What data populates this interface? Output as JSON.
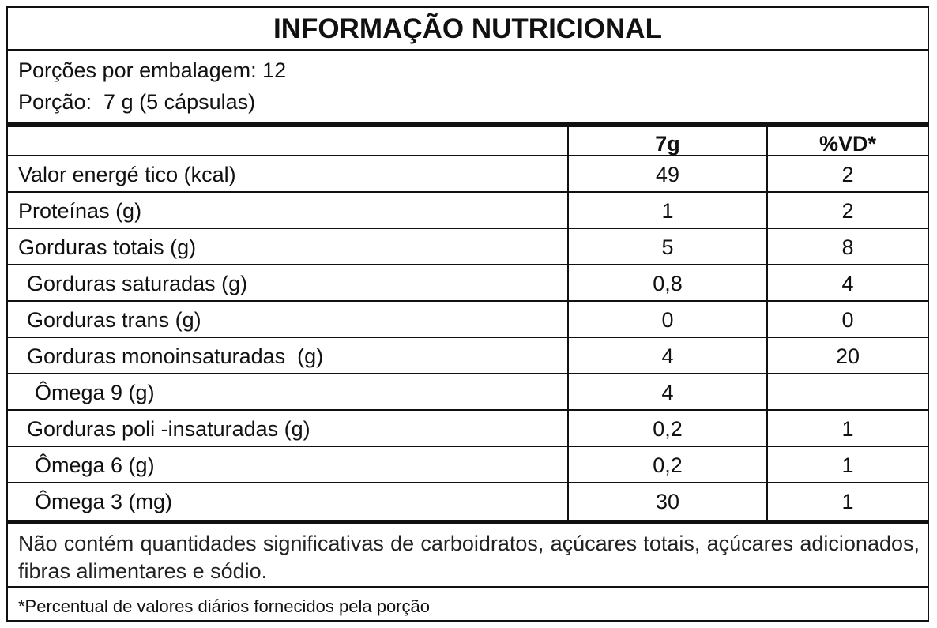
{
  "header": {
    "title": "INFORMAÇÃO NUTRICIONAL",
    "servings": "Porções por embalagem: 12",
    "serving_size": "Porção:  7 g (5 cápsulas)"
  },
  "table": {
    "columns": [
      "7g",
      "%VD*"
    ],
    "rows": [
      [
        "Valor energé tico (kcal)",
        "49",
        "2"
      ],
      [
        "Proteínas (g)",
        "1",
        "2"
      ],
      [
        "Gorduras totais (g)",
        "5",
        "8"
      ],
      [
        "Gorduras saturadas (g)",
        "0,8",
        "4"
      ],
      [
        "Gorduras trans (g)",
        "0",
        "0"
      ],
      [
        "Gorduras monoinsaturadas  (g)",
        "4",
        "20"
      ],
      [
        "Ômega 9 (g)",
        "4",
        null
      ],
      [
        "Gorduras poli -insaturadas (g)",
        "0,2",
        "1"
      ],
      [
        "Ômega 6 (g)",
        "0,2",
        "1"
      ],
      [
        "Ômega 3 (mg)",
        "30",
        "1"
      ]
    ]
  },
  "notes": [
    "Não contém quantidades significativas de carboidratos, açúcares totais, açúcares adicionados, fibras alimentares e sódio.",
    "*Percentual de valores diários fornecidos pela porção"
  ]
}
